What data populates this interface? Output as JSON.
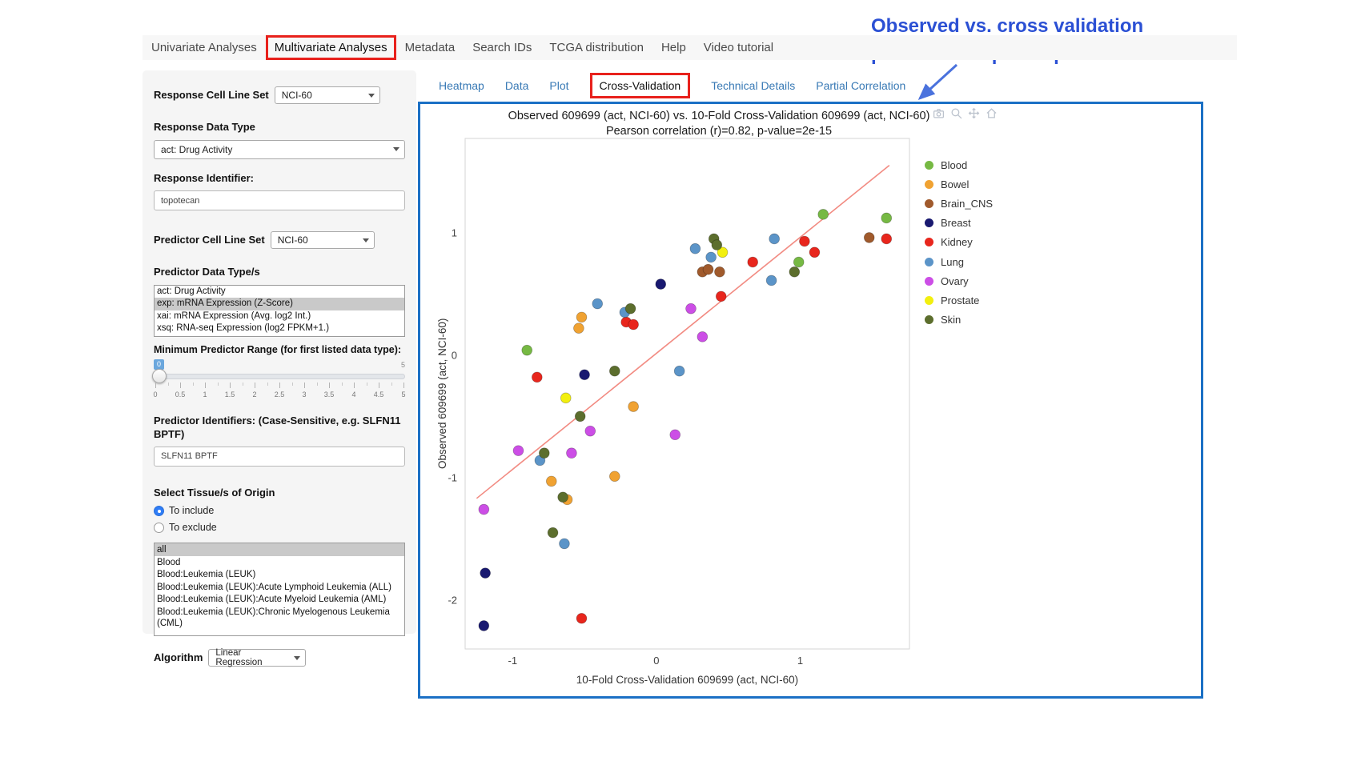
{
  "annotation": {
    "line1": "Observed vs. cross validation",
    "line2": "predicted response plot"
  },
  "nav": {
    "items": [
      {
        "label": "Univariate Analyses",
        "active": false,
        "boxed": false
      },
      {
        "label": "Multivariate Analyses",
        "active": true,
        "boxed": true
      },
      {
        "label": "Metadata",
        "active": false,
        "boxed": false
      },
      {
        "label": "Search IDs",
        "active": false,
        "boxed": false
      },
      {
        "label": "TCGA distribution",
        "active": false,
        "boxed": false
      },
      {
        "label": "Help",
        "active": false,
        "boxed": false
      },
      {
        "label": "Video tutorial",
        "active": false,
        "boxed": false
      }
    ]
  },
  "sidebar": {
    "response_cell_line_set": {
      "label": "Response Cell Line Set",
      "value": "NCI-60"
    },
    "response_data_type": {
      "label": "Response Data Type",
      "value": "act: Drug Activity"
    },
    "response_identifier": {
      "label": "Response Identifier:",
      "value": "topotecan"
    },
    "predictor_cell_line_set": {
      "label": "Predictor Cell Line Set",
      "value": "NCI-60"
    },
    "predictor_data_types": {
      "label": "Predictor Data Type/s",
      "options": [
        "act: Drug Activity",
        "exp: mRNA Expression (Z-Score)",
        "xai: mRNA Expression (Avg. log2 Int.)",
        "xsq: RNA-seq Expression (log2 FPKM+1.)"
      ],
      "selected": "exp: mRNA Expression (Z-Score)"
    },
    "min_predictor_range": {
      "label": "Minimum Predictor Range (for first listed data type):",
      "value": "0",
      "min": "0",
      "max": "5",
      "ticks": [
        "0",
        "0.5",
        "1",
        "1.5",
        "2",
        "2.5",
        "3",
        "3.5",
        "4",
        "4.5",
        "5"
      ]
    },
    "predictor_identifiers": {
      "label": "Predictor Identifiers: (Case-Sensitive, e.g. SLFN11 BPTF)",
      "value": "SLFN11 BPTF"
    },
    "tissue_origin": {
      "label": "Select Tissue/s of Origin",
      "radios": [
        {
          "label": "To include",
          "checked": true
        },
        {
          "label": "To exclude",
          "checked": false
        }
      ],
      "options": [
        "all",
        "Blood",
        "Blood:Leukemia (LEUK)",
        "Blood:Leukemia (LEUK):Acute Lymphoid Leukemia (ALL)",
        "Blood:Leukemia (LEUK):Acute Myeloid Leukemia (AML)",
        "Blood:Leukemia (LEUK):Chronic Myelogenous Leukemia (CML)"
      ],
      "selected": "all"
    },
    "algorithm": {
      "label": "Algorithm",
      "value": "Linear Regression"
    }
  },
  "tabs": {
    "items": [
      {
        "label": "Heatmap",
        "active": false,
        "boxed": false
      },
      {
        "label": "Data",
        "active": false,
        "boxed": false
      },
      {
        "label": "Plot",
        "active": false,
        "boxed": false
      },
      {
        "label": "Cross-Validation",
        "active": true,
        "boxed": true
      },
      {
        "label": "Technical Details",
        "active": false,
        "boxed": false
      },
      {
        "label": "Partial Correlation",
        "active": false,
        "boxed": false
      }
    ]
  },
  "plot": {
    "modebar_icons": [
      "camera-icon",
      "zoom-icon",
      "pan-icon",
      "home-icon"
    ]
  },
  "chart_data": {
    "type": "scatter",
    "title": "Observed 609699 (act, NCI-60) vs. 10-Fold Cross-Validation 609699 (act, NCI-60)",
    "subtitle": "Pearson correlation (r)=0.82, p-value=2e-15",
    "xlabel": "10-Fold Cross-Validation 609699 (act, NCI-60)",
    "ylabel": "Observed 609699 (act, NCI-60)",
    "xlim": [
      -1.33,
      1.76
    ],
    "ylim": [
      -2.4,
      1.77
    ],
    "xticks": [
      -1,
      0,
      1
    ],
    "yticks": [
      -2,
      -1,
      0,
      1
    ],
    "grid": false,
    "legend_position": "right",
    "regression_line": {
      "x": [
        -1.25,
        1.62
      ],
      "y": [
        -1.17,
        1.55
      ],
      "color": "#f28b82"
    },
    "series": [
      {
        "name": "Blood",
        "color": "#76b943",
        "points": [
          [
            -0.9,
            0.04
          ],
          [
            0.99,
            0.76
          ],
          [
            1.16,
            1.15
          ],
          [
            1.6,
            1.12
          ]
        ]
      },
      {
        "name": "Bowel",
        "color": "#f0a232",
        "points": [
          [
            -0.73,
            -1.03
          ],
          [
            -0.62,
            -1.18
          ],
          [
            -0.54,
            0.22
          ],
          [
            -0.52,
            0.31
          ],
          [
            -0.16,
            -0.42
          ],
          [
            -0.29,
            -0.99
          ]
        ]
      },
      {
        "name": "Brain_CNS",
        "color": "#a05a2c",
        "points": [
          [
            0.32,
            0.68
          ],
          [
            0.36,
            0.7
          ],
          [
            0.44,
            0.68
          ],
          [
            1.48,
            0.96
          ]
        ]
      },
      {
        "name": "Breast",
        "color": "#191970",
        "points": [
          [
            -1.19,
            -1.78
          ],
          [
            -1.2,
            -2.21
          ],
          [
            -0.5,
            -0.16
          ],
          [
            0.03,
            0.58
          ]
        ]
      },
      {
        "name": "Kidney",
        "color": "#e8261d",
        "points": [
          [
            -0.83,
            -0.18
          ],
          [
            -0.52,
            -2.15
          ],
          [
            -0.21,
            0.27
          ],
          [
            -0.16,
            0.25
          ],
          [
            0.45,
            0.48
          ],
          [
            0.67,
            0.76
          ],
          [
            1.03,
            0.93
          ],
          [
            1.1,
            0.84
          ],
          [
            1.6,
            0.95
          ]
        ]
      },
      {
        "name": "Lung",
        "color": "#5b94c8",
        "points": [
          [
            -0.81,
            -0.86
          ],
          [
            -0.64,
            -1.54
          ],
          [
            -0.41,
            0.42
          ],
          [
            -0.22,
            0.35
          ],
          [
            0.16,
            -0.13
          ],
          [
            0.27,
            0.87
          ],
          [
            0.38,
            0.8
          ],
          [
            0.8,
            0.61
          ],
          [
            0.82,
            0.95
          ]
        ]
      },
      {
        "name": "Ovary",
        "color": "#cc4ee6",
        "points": [
          [
            -1.2,
            -1.26
          ],
          [
            -0.96,
            -0.78
          ],
          [
            -0.59,
            -0.8
          ],
          [
            -0.46,
            -0.62
          ],
          [
            0.13,
            -0.65
          ],
          [
            0.24,
            0.38
          ],
          [
            0.32,
            0.15
          ]
        ]
      },
      {
        "name": "Prostate",
        "color": "#f2ef0f",
        "points": [
          [
            -0.63,
            -0.35
          ],
          [
            0.46,
            0.84
          ]
        ]
      },
      {
        "name": "Skin",
        "color": "#5c6e2d",
        "points": [
          [
            -0.78,
            -0.8
          ],
          [
            -0.72,
            -1.45
          ],
          [
            -0.65,
            -1.16
          ],
          [
            -0.53,
            -0.5
          ],
          [
            -0.29,
            -0.13
          ],
          [
            -0.18,
            0.38
          ],
          [
            0.4,
            0.95
          ],
          [
            0.42,
            0.9
          ],
          [
            0.96,
            0.68
          ]
        ]
      }
    ]
  }
}
